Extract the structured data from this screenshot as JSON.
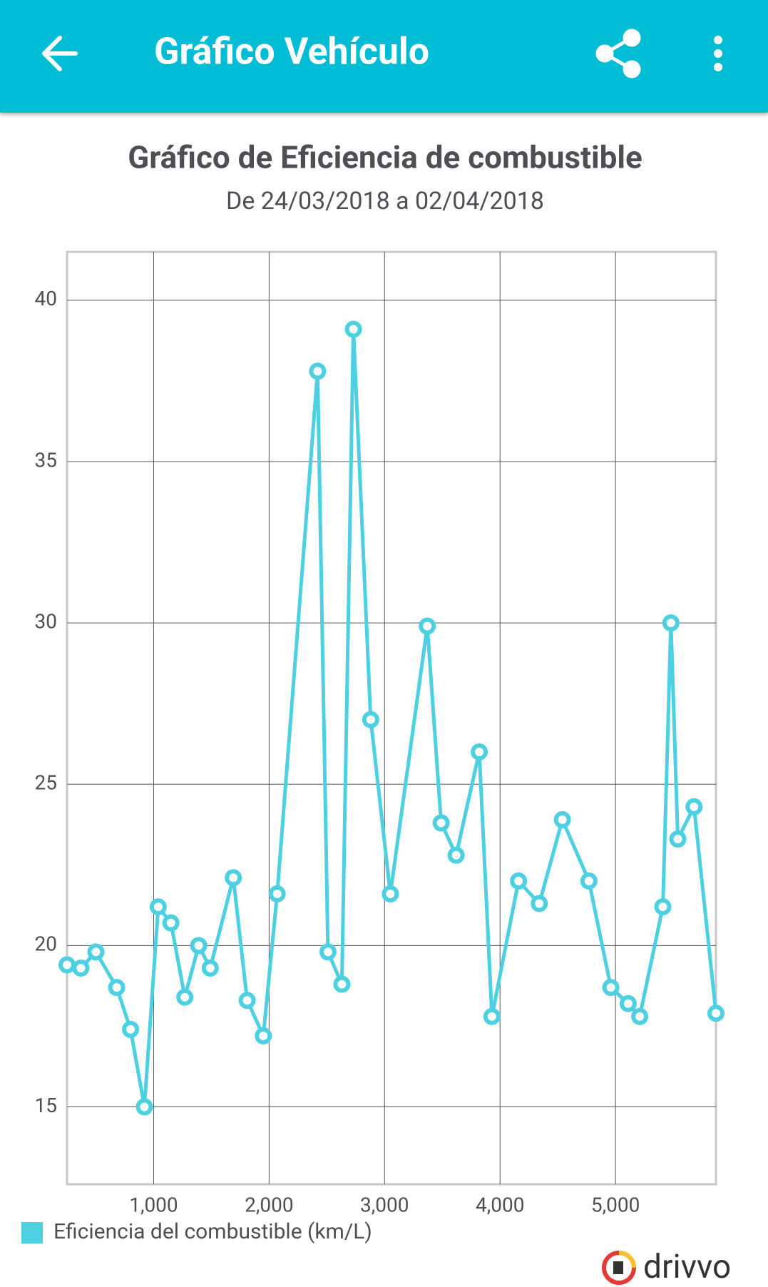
{
  "app_bar": {
    "title": "Gráfico Vehículo"
  },
  "brand": "drivvo",
  "chart_data": {
    "type": "line",
    "title": "Gráfico de Eficiencia de combustible",
    "subtitle": "De 24/03/2018 a 02/04/2018",
    "x": [
      250,
      370,
      500,
      680,
      800,
      920,
      1040,
      1150,
      1270,
      1390,
      1490,
      1690,
      1810,
      1950,
      2070,
      2420,
      2510,
      2630,
      2730,
      2880,
      3050,
      3370,
      3490,
      3620,
      3820,
      3930,
      4160,
      4340,
      4540,
      4770,
      4960,
      5110,
      5210,
      5410,
      5480,
      5540,
      5680,
      5870
    ],
    "series": [
      {
        "name": "Eficiencia del combustible (km/L)",
        "color": "#4dd0e1",
        "values": [
          19.4,
          19.3,
          19.8,
          18.7,
          17.4,
          15.0,
          21.2,
          20.7,
          18.4,
          20.0,
          19.3,
          22.1,
          18.3,
          17.2,
          21.6,
          37.8,
          19.8,
          18.8,
          39.1,
          27.0,
          21.6,
          29.9,
          23.8,
          22.8,
          26.0,
          17.8,
          22.0,
          21.3,
          23.9,
          22.0,
          18.7,
          18.2,
          17.8,
          21.2,
          30.0,
          23.3,
          24.3,
          17.9
        ]
      }
    ],
    "xlim": [
      250,
      5870
    ],
    "ylim": [
      12.6,
      41.5
    ],
    "xticks": [
      {
        "value": 1000,
        "label": "1,000"
      },
      {
        "value": 2000,
        "label": "2,000"
      },
      {
        "value": 3000,
        "label": "3,000"
      },
      {
        "value": 4000,
        "label": "4,000"
      },
      {
        "value": 5000,
        "label": "5,000"
      }
    ],
    "yticks": [
      15,
      20,
      25,
      30,
      35,
      40
    ],
    "grid": true,
    "legend": "bottom-left"
  }
}
